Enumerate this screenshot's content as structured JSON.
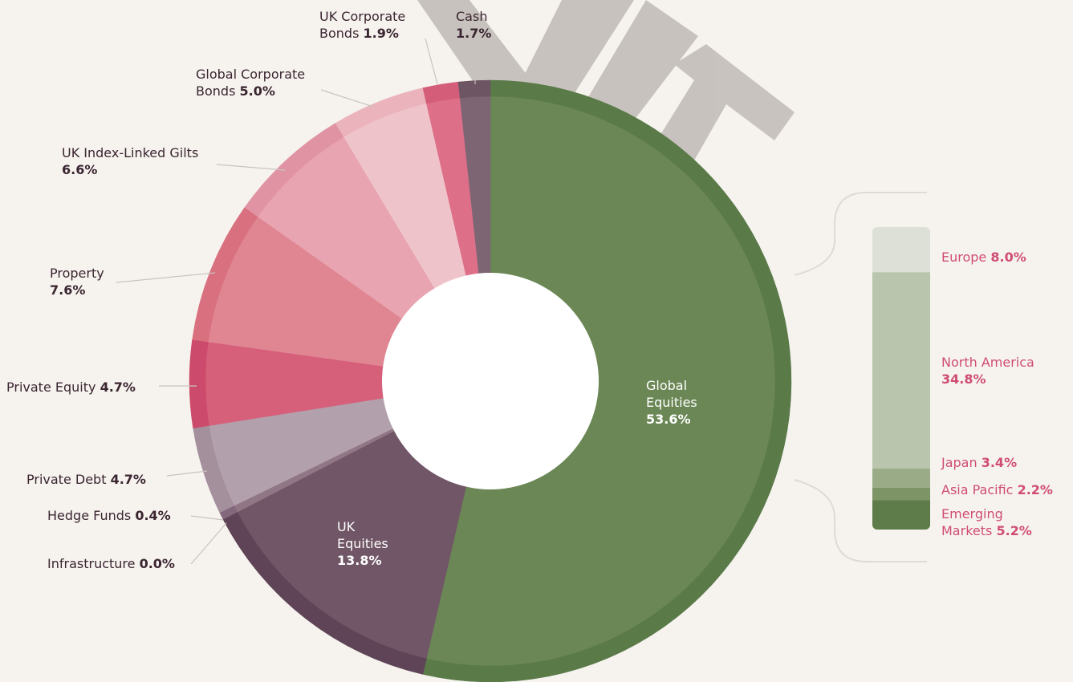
{
  "chart_data": {
    "type": "donut",
    "categories": [
      "Global Equities",
      "UK Equities",
      "Infrastructure",
      "Hedge Funds",
      "Private Debt",
      "Private Equity",
      "Property",
      "UK Index-Linked Gilts",
      "Global Corporate Bonds",
      "UK Corporate Bonds",
      "Cash"
    ],
    "values": [
      53.6,
      13.8,
      0.0,
      0.4,
      4.7,
      4.7,
      7.6,
      6.6,
      5.0,
      1.9,
      1.7
    ],
    "value_labels": [
      "53.6%",
      "13.8%",
      "0.0%",
      "0.4%",
      "4.7%",
      "4.7%",
      "7.6%",
      "6.6%",
      "5.0%",
      "1.9%",
      "1.7%"
    ],
    "colors": [
      "#6b8755",
      "#705666",
      "#8a6f7f",
      "#917686",
      "#b3a0ad",
      "#d65f7a",
      "#e08592",
      "#e8a4b0",
      "#efc3ca",
      "#dd6f88",
      "#7e6574"
    ],
    "rim_colors": [
      "#5a7a48",
      "#5e4456",
      "#7a5f6f",
      "#82687a",
      "#a48f9d",
      "#cc4a6b",
      "#d8707f",
      "#e094a3",
      "#ebb4bd",
      "#d45d79",
      "#6e5564"
    ],
    "breakdown": {
      "type": "stacked-bar",
      "categories": [
        "Europe",
        "North America",
        "Japan",
        "Asia Pacific",
        "Emerging Markets"
      ],
      "values": [
        8.0,
        34.8,
        3.4,
        2.2,
        5.2
      ],
      "value_labels": [
        "8.0%",
        "34.8%",
        "3.4%",
        "2.2%",
        "5.2%"
      ],
      "colors": [
        "#dde0d6",
        "#bac5ad",
        "#9aab88",
        "#7d9466",
        "#5e7c4a"
      ]
    }
  }
}
